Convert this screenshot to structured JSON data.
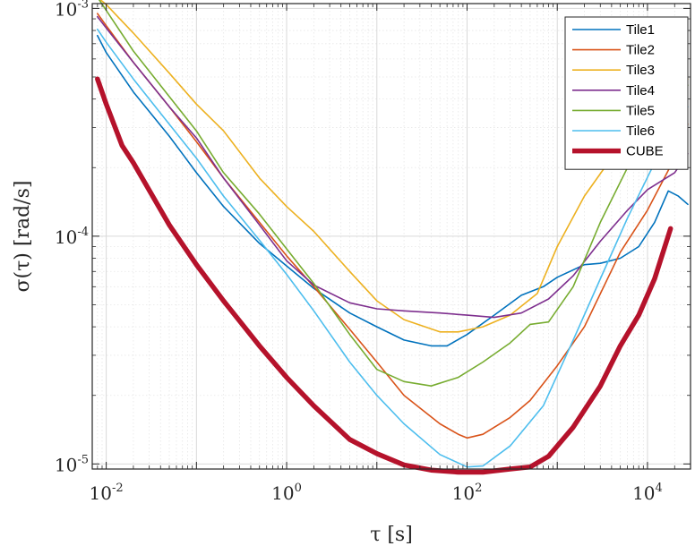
{
  "chart_data": {
    "type": "line",
    "xlabel": "τ [s]",
    "ylabel": "σ(τ) [rad/s]",
    "x_scale": "log",
    "y_scale": "log",
    "xlim": [
      0.007,
      30000
    ],
    "ylim": [
      9.5e-06,
      0.00105
    ],
    "grid": true,
    "minor_grid": true,
    "legend_position": "top-right",
    "x_ticks": [
      {
        "value": 0.01,
        "base": "10",
        "exp": "-2"
      },
      {
        "value": 1,
        "base": "10",
        "exp": "0"
      },
      {
        "value": 100,
        "base": "10",
        "exp": "2"
      },
      {
        "value": 10000,
        "base": "10",
        "exp": "4"
      }
    ],
    "y_ticks": [
      {
        "value": 1e-05,
        "base": "10",
        "exp": "-5"
      },
      {
        "value": 0.0001,
        "base": "10",
        "exp": "-4"
      },
      {
        "value": 0.001,
        "base": "10",
        "exp": "-3"
      }
    ],
    "series": [
      {
        "name": "Tile1",
        "color": "#0072bd",
        "width": 1.6,
        "points": [
          [
            0.008,
            0.00076
          ],
          [
            0.01,
            0.00064
          ],
          [
            0.02,
            0.00043
          ],
          [
            0.05,
            0.000275
          ],
          [
            0.07,
            0.00023
          ],
          [
            0.1,
            0.00019
          ],
          [
            0.2,
            0.000135
          ],
          [
            0.5,
            9.3e-05
          ],
          [
            1,
            7.4e-05
          ],
          [
            2,
            5.9e-05
          ],
          [
            5,
            4.6e-05
          ],
          [
            10,
            4e-05
          ],
          [
            20,
            3.5e-05
          ],
          [
            40,
            3.3e-05
          ],
          [
            60,
            3.3e-05
          ],
          [
            100,
            3.7e-05
          ],
          [
            200,
            4.5e-05
          ],
          [
            400,
            5.5e-05
          ],
          [
            700,
            6e-05
          ],
          [
            1000,
            6.6e-05
          ],
          [
            2000,
            7.5e-05
          ],
          [
            3000,
            7.6e-05
          ],
          [
            5000,
            8e-05
          ],
          [
            8000,
            9e-05
          ],
          [
            12000,
            0.000115
          ],
          [
            17000,
            0.000158
          ],
          [
            22000,
            0.00015
          ],
          [
            28000,
            0.000138
          ]
        ]
      },
      {
        "name": "Tile2",
        "color": "#d95319",
        "width": 1.6,
        "points": [
          [
            0.008,
            0.00095
          ],
          [
            0.01,
            0.00084
          ],
          [
            0.02,
            0.00058
          ],
          [
            0.05,
            0.00037
          ],
          [
            0.1,
            0.00026
          ],
          [
            0.2,
            0.00018
          ],
          [
            0.5,
            0.000115
          ],
          [
            1,
            8.2e-05
          ],
          [
            2,
            6e-05
          ],
          [
            5,
            3.9e-05
          ],
          [
            10,
            2.8e-05
          ],
          [
            20,
            2e-05
          ],
          [
            50,
            1.5e-05
          ],
          [
            80,
            1.35e-05
          ],
          [
            100,
            1.3e-05
          ],
          [
            150,
            1.35e-05
          ],
          [
            300,
            1.6e-05
          ],
          [
            500,
            1.9e-05
          ],
          [
            1000,
            2.7e-05
          ],
          [
            2000,
            4e-05
          ],
          [
            5000,
            8.5e-05
          ],
          [
            10000,
            0.00013
          ],
          [
            20000,
            0.00022
          ],
          [
            28000,
            0.00031
          ]
        ]
      },
      {
        "name": "Tile3",
        "color": "#edb120",
        "width": 1.6,
        "points": [
          [
            0.008,
            0.00112
          ],
          [
            0.01,
            0.00104
          ],
          [
            0.02,
            0.00078
          ],
          [
            0.05,
            0.00052
          ],
          [
            0.1,
            0.00038
          ],
          [
            0.2,
            0.00029
          ],
          [
            0.5,
            0.00018
          ],
          [
            1,
            0.000135
          ],
          [
            2,
            0.000105
          ],
          [
            5,
            7e-05
          ],
          [
            10,
            5.2e-05
          ],
          [
            20,
            4.3e-05
          ],
          [
            50,
            3.8e-05
          ],
          [
            80,
            3.8e-05
          ],
          [
            150,
            4e-05
          ],
          [
            300,
            4.5e-05
          ],
          [
            600,
            5.6e-05
          ],
          [
            1000,
            9e-05
          ],
          [
            2000,
            0.00015
          ],
          [
            5000,
            0.00025
          ],
          [
            10000,
            0.00034
          ],
          [
            20000,
            0.00042
          ],
          [
            28000,
            0.00049
          ]
        ]
      },
      {
        "name": "Tile4",
        "color": "#7e2f8e",
        "width": 1.6,
        "points": [
          [
            0.008,
            0.00092
          ],
          [
            0.01,
            0.00082
          ],
          [
            0.02,
            0.00058
          ],
          [
            0.05,
            0.00037
          ],
          [
            0.1,
            0.00027
          ],
          [
            0.2,
            0.00018
          ],
          [
            0.5,
            0.000112
          ],
          [
            1,
            7.8e-05
          ],
          [
            2,
            6.1e-05
          ],
          [
            5,
            5.1e-05
          ],
          [
            10,
            4.8e-05
          ],
          [
            20,
            4.7e-05
          ],
          [
            50,
            4.6e-05
          ],
          [
            100,
            4.5e-05
          ],
          [
            200,
            4.4e-05
          ],
          [
            400,
            4.6e-05
          ],
          [
            800,
            5.3e-05
          ],
          [
            1500,
            6.7e-05
          ],
          [
            3000,
            9.5e-05
          ],
          [
            6000,
            0.00013
          ],
          [
            10000,
            0.00016
          ],
          [
            20000,
            0.00019
          ],
          [
            28000,
            0.00023
          ]
        ]
      },
      {
        "name": "Tile5",
        "color": "#77ac30",
        "width": 1.6,
        "points": [
          [
            0.008,
            0.00112
          ],
          [
            0.01,
            0.00098
          ],
          [
            0.02,
            0.00065
          ],
          [
            0.05,
            0.00041
          ],
          [
            0.1,
            0.00029
          ],
          [
            0.2,
            0.00019
          ],
          [
            0.5,
            0.000125
          ],
          [
            1,
            8.8e-05
          ],
          [
            2,
            6.2e-05
          ],
          [
            5,
            3.7e-05
          ],
          [
            10,
            2.6e-05
          ],
          [
            20,
            2.3e-05
          ],
          [
            40,
            2.2e-05
          ],
          [
            80,
            2.4e-05
          ],
          [
            150,
            2.8e-05
          ],
          [
            300,
            3.4e-05
          ],
          [
            500,
            4.1e-05
          ],
          [
            800,
            4.2e-05
          ],
          [
            1500,
            6e-05
          ],
          [
            3000,
            0.000115
          ],
          [
            6000,
            0.0002
          ],
          [
            12000,
            0.00031
          ],
          [
            20000,
            0.00038
          ],
          [
            28000,
            0.00046
          ]
        ]
      },
      {
        "name": "Tile6",
        "color": "#4dbeee",
        "width": 1.6,
        "points": [
          [
            0.008,
            0.00081
          ],
          [
            0.01,
            0.00071
          ],
          [
            0.02,
            0.00049
          ],
          [
            0.05,
            0.00031
          ],
          [
            0.1,
            0.00022
          ],
          [
            0.2,
            0.00015
          ],
          [
            0.5,
            9.6e-05
          ],
          [
            1,
            6.8e-05
          ],
          [
            2,
            4.7e-05
          ],
          [
            5,
            2.8e-05
          ],
          [
            10,
            2e-05
          ],
          [
            20,
            1.5e-05
          ],
          [
            50,
            1.1e-05
          ],
          [
            100,
            9.7e-06
          ],
          [
            150,
            9.8e-06
          ],
          [
            300,
            1.2e-05
          ],
          [
            700,
            1.8e-05
          ],
          [
            1500,
            3.5e-05
          ],
          [
            3000,
            6.5e-05
          ],
          [
            6000,
            0.00012
          ],
          [
            12000,
            0.00021
          ],
          [
            20000,
            0.00029
          ],
          [
            28000,
            0.00037
          ]
        ]
      },
      {
        "name": "CUBE",
        "color": "#b5122b",
        "width": 5.5,
        "points": [
          [
            0.008,
            0.00049
          ],
          [
            0.01,
            0.00038
          ],
          [
            0.015,
            0.00025
          ],
          [
            0.02,
            0.00021
          ],
          [
            0.05,
            0.000112
          ],
          [
            0.1,
            7.5e-05
          ],
          [
            0.2,
            5.2e-05
          ],
          [
            0.5,
            3.3e-05
          ],
          [
            1,
            2.4e-05
          ],
          [
            2,
            1.8e-05
          ],
          [
            5,
            1.28e-05
          ],
          [
            10,
            1.11e-05
          ],
          [
            20,
            9.9e-06
          ],
          [
            40,
            9.4e-06
          ],
          [
            80,
            9.2e-06
          ],
          [
            150,
            9.2e-06
          ],
          [
            300,
            9.5e-06
          ],
          [
            500,
            9.7e-06
          ],
          [
            800,
            1.08e-05
          ],
          [
            1500,
            1.45e-05
          ],
          [
            3000,
            2.2e-05
          ],
          [
            5000,
            3.3e-05
          ],
          [
            8000,
            4.5e-05
          ],
          [
            12000,
            6.5e-05
          ],
          [
            18000,
            0.000108
          ]
        ]
      }
    ]
  }
}
